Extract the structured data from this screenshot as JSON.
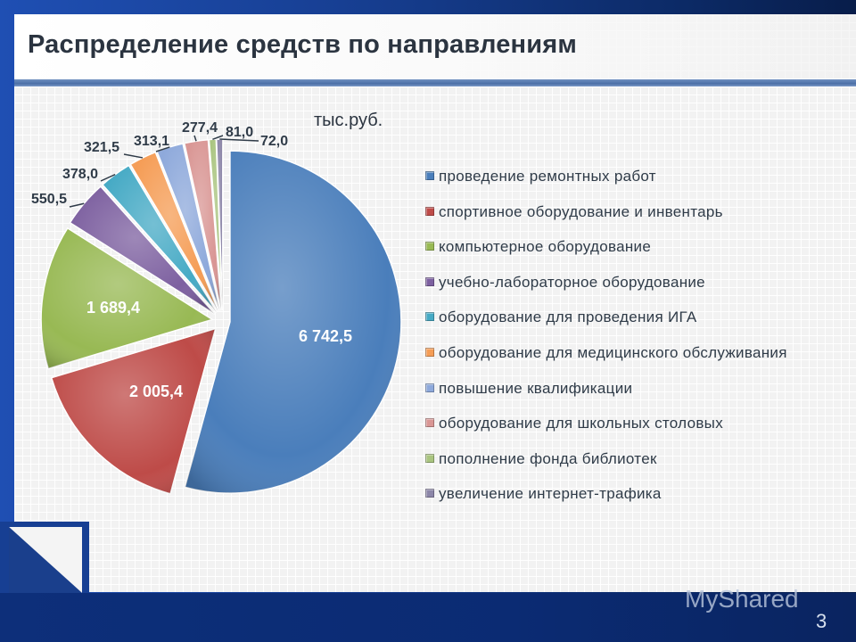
{
  "slide": {
    "title": "Распределение средств по направлениям",
    "unit_label": "тыс.руб.",
    "page_number": "3",
    "watermark": "MyShared"
  },
  "chart_data": {
    "type": "pie",
    "title": "Распределение средств по направлениям",
    "unit": "тыс.руб.",
    "legend_position": "right",
    "exploded": true,
    "categories": [
      "проведение ремонтных работ",
      "спортивное оборудование и инвентарь",
      "компьютерное оборудование",
      "учебно-лабораторное оборудование",
      "оборудование для проведения ИГА",
      "оборудование для медицинского обслуживания",
      "повышение квалификации",
      "оборудование для школьных столовых",
      "пополнение фонда библиотек",
      "увеличение интернет-трафика"
    ],
    "values": [
      6742.5,
      2005.4,
      1689.4,
      550.5,
      378.0,
      321.5,
      313.1,
      277.4,
      81.0,
      72.0
    ],
    "value_labels": [
      "6 742,5",
      "2 005,4",
      "1 689,4",
      "550,5",
      "378,0",
      "321,5",
      "313,1",
      "277,4",
      "81,0",
      "72,0"
    ],
    "colors": [
      "#4a7ebb",
      "#be4b48",
      "#98b954",
      "#7d60a0",
      "#46aac5",
      "#f59d56",
      "#8ea9db",
      "#d99694",
      "#a9c47f",
      "#8c86a8"
    ]
  },
  "legend": [
    {
      "label": "проведение ремонтных работ",
      "color": "#4a7ebb"
    },
    {
      "label": "спортивное оборудование и инвентарь",
      "color": "#be4b48"
    },
    {
      "label": "компьютерное оборудование",
      "color": "#98b954"
    },
    {
      "label": "учебно-лабораторное оборудование",
      "color": "#7d60a0"
    },
    {
      "label": "оборудование для проведения ИГА",
      "color": "#46aac5"
    },
    {
      "label": "оборудование для медицинского обслуживания",
      "color": "#f59d56"
    },
    {
      "label": "повышение квалификации",
      "color": "#8ea9db"
    },
    {
      "label": "оборудование для школьных столовых",
      "color": "#d99694"
    },
    {
      "label": "пополнение фонда библиотек",
      "color": "#a9c47f"
    },
    {
      "label": "увеличение интернет-трафика",
      "color": "#8c86a8"
    }
  ]
}
